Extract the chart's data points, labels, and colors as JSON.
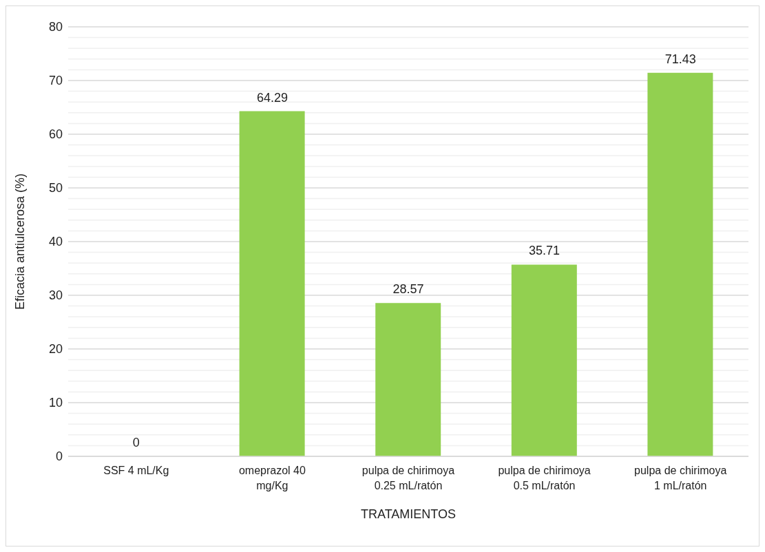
{
  "chart_data": {
    "type": "bar",
    "xlabel": "TRATAMIENTOS",
    "ylabel": "Eficacia antiulcerosa (%)",
    "categories": [
      "SSF 4 mL/Kg",
      "omeprazol 40\nmg/Kg",
      "pulpa de chirimoya\n0.25 mL/ratón",
      "pulpa de chirimoya\n0.5 mL/ratón",
      "pulpa de chirimoya\n1 mL/ratón"
    ],
    "values": [
      0,
      64.29,
      28.57,
      35.71,
      71.43
    ],
    "color": "#92d050",
    "data_labels": true,
    "ylim": [
      0,
      80
    ],
    "yticks": [
      0,
      {
        "value": 2,
        "label": null
      },
      {
        "value": 4,
        "label": null
      },
      {
        "value": 6,
        "label": null
      },
      {
        "value": 8,
        "label": null
      },
      10,
      {
        "value": 12,
        "label": null
      },
      {
        "value": 14,
        "label": null
      },
      {
        "value": 16,
        "label": null
      },
      {
        "value": 18,
        "label": null
      },
      20,
      {
        "value": 22,
        "label": null
      },
      {
        "value": 24,
        "label": null
      },
      {
        "value": 26,
        "label": null
      },
      {
        "value": 28,
        "label": null
      },
      30,
      {
        "value": 32,
        "label": null
      },
      {
        "value": 34,
        "label": null
      },
      {
        "value": 36,
        "label": null
      },
      {
        "value": 38,
        "label": null
      },
      40,
      {
        "value": 42,
        "label": null
      },
      {
        "value": 44,
        "label": null
      },
      {
        "value": 46,
        "label": null
      },
      {
        "value": 48,
        "label": null
      },
      50,
      {
        "value": 52,
        "label": null
      },
      {
        "value": 54,
        "label": null
      },
      {
        "value": 56,
        "label": null
      },
      {
        "value": 58,
        "label": null
      },
      60,
      {
        "value": 62,
        "label": null
      },
      {
        "value": 64,
        "label": null
      },
      {
        "value": 66,
        "label": null
      },
      {
        "value": 68,
        "label": null
      },
      70,
      {
        "value": 72,
        "label": null
      },
      {
        "value": 74,
        "label": null
      },
      {
        "value": 76,
        "label": null
      },
      {
        "value": 78,
        "label": null
      },
      80
    ],
    "grid": "y",
    "legend": false
  }
}
